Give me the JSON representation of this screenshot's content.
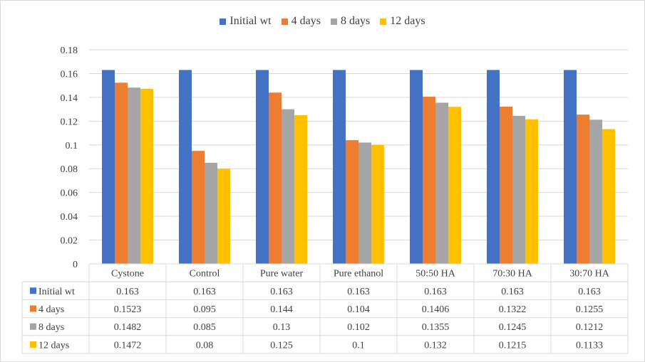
{
  "chart_data": {
    "type": "bar",
    "categories": [
      "Cystone",
      "Control",
      "Pure water",
      "Pure ethanol",
      "50:50 HA",
      "70:30 HA",
      "30:70 HA"
    ],
    "series": [
      {
        "name": "Initial wt",
        "color": "#4472C4",
        "values": [
          0.163,
          0.163,
          0.163,
          0.163,
          0.163,
          0.163,
          0.163
        ],
        "labels": [
          "0.163",
          "0.163",
          "0.163",
          "0.163",
          "0.163",
          "0.163",
          "0.163"
        ]
      },
      {
        "name": "4 days",
        "color": "#ED7D31",
        "values": [
          0.1523,
          0.095,
          0.144,
          0.104,
          0.1406,
          0.1322,
          0.1255
        ],
        "labels": [
          "0.1523",
          "0.095",
          "0.144",
          "0.104",
          "0.1406",
          "0.1322",
          "0.1255"
        ]
      },
      {
        "name": "8 days",
        "color": "#A5A5A5",
        "values": [
          0.1482,
          0.085,
          0.13,
          0.102,
          0.1355,
          0.1245,
          0.1212
        ],
        "labels": [
          "0.1482",
          "0.085",
          "0.13",
          "0.102",
          "0.1355",
          "0.1245",
          "0.1212"
        ]
      },
      {
        "name": "12 days",
        "color": "#FFC000",
        "values": [
          0.1472,
          0.08,
          0.125,
          0.1,
          0.132,
          0.1215,
          0.1133
        ],
        "labels": [
          "0.1472",
          "0.08",
          "0.125",
          "0.1",
          "0.132",
          "0.1215",
          "0.1133"
        ]
      }
    ],
    "y_ticks": [
      "0",
      "0.02",
      "0.04",
      "0.06",
      "0.08",
      "0.1",
      "0.12",
      "0.14",
      "0.16",
      "0.18"
    ],
    "ylim": [
      0,
      0.18
    ],
    "grid": true,
    "legend_position": "top",
    "data_table": true
  }
}
